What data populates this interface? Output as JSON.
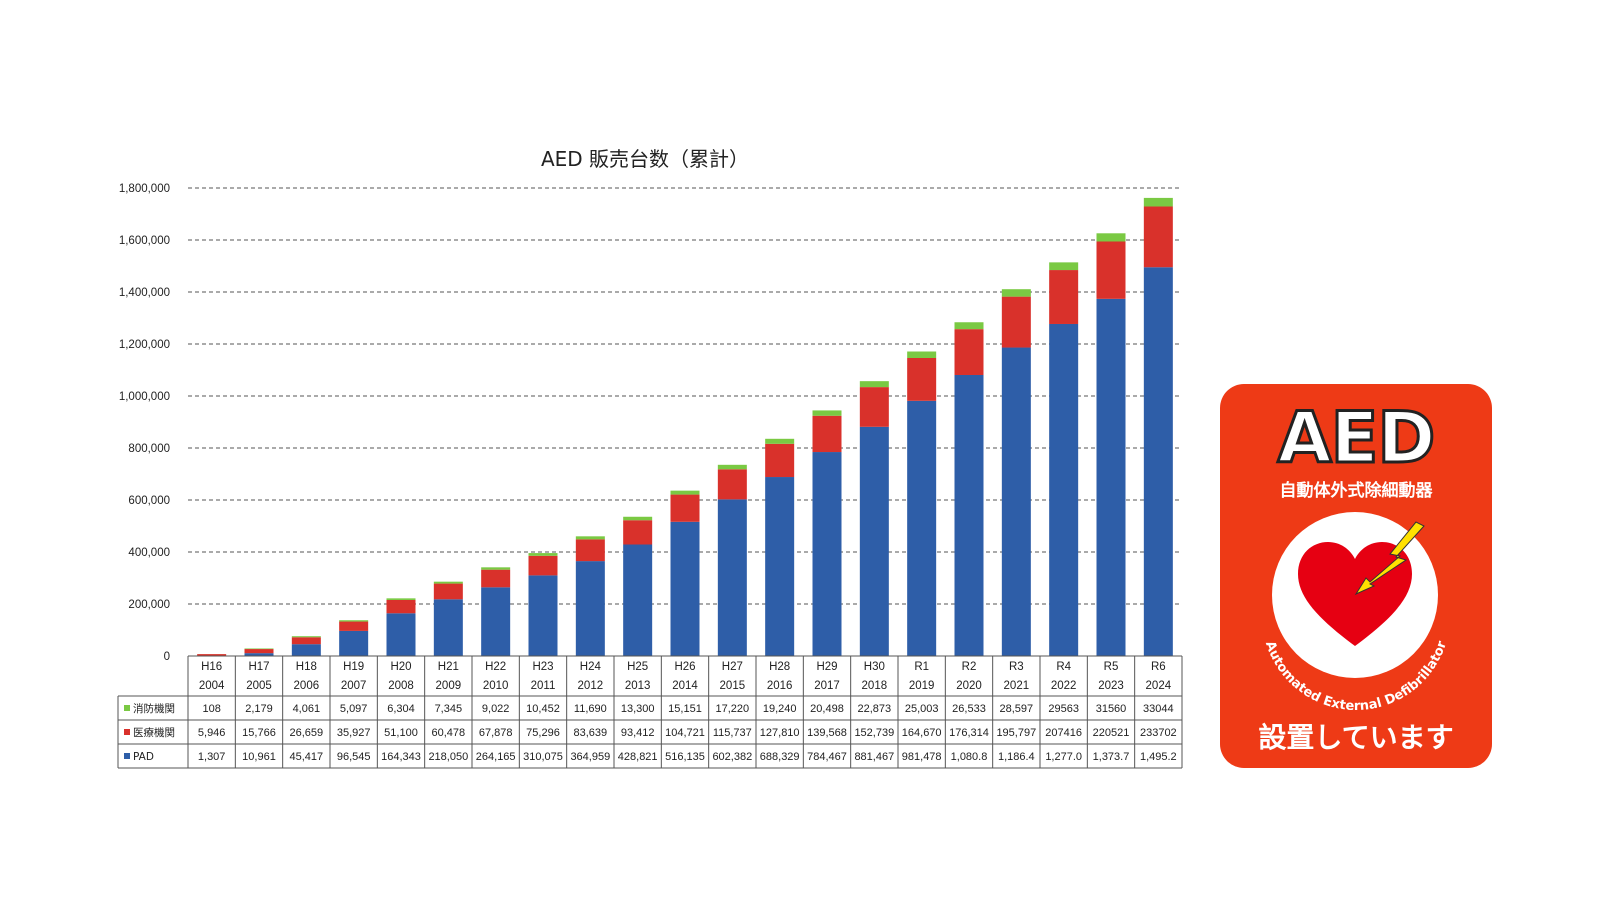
{
  "chart_data": {
    "type": "bar",
    "stacked": true,
    "title": "AED 販売台数（累計）",
    "ylim": [
      0,
      1800000
    ],
    "yticks": [
      "0",
      "200,000",
      "400,000",
      "600,000",
      "800,000",
      "1,000,000",
      "1,200,000",
      "1,400,000",
      "1,600,000",
      "1,800,000"
    ],
    "grid": "horizontal dashed",
    "categories": [
      [
        "H16",
        "2004"
      ],
      [
        "H17",
        "2005"
      ],
      [
        "H18",
        "2006"
      ],
      [
        "H19",
        "2007"
      ],
      [
        "H20",
        "2008"
      ],
      [
        "H21",
        "2009"
      ],
      [
        "H22",
        "2010"
      ],
      [
        "H23",
        "2011"
      ],
      [
        "H24",
        "2012"
      ],
      [
        "H25",
        "2013"
      ],
      [
        "H26",
        "2014"
      ],
      [
        "H27",
        "2015"
      ],
      [
        "H28",
        "2016"
      ],
      [
        "H29",
        "2017"
      ],
      [
        "H30",
        "2018"
      ],
      [
        "R1",
        "2019"
      ],
      [
        "R2",
        "2020"
      ],
      [
        "R3",
        "2021"
      ],
      [
        "R4",
        "2022"
      ],
      [
        "R5",
        "2023"
      ],
      [
        "R6",
        "2024"
      ]
    ],
    "series": [
      {
        "name": "PAD",
        "color": "#2e5ea8",
        "values": [
          1307,
          10961,
          45417,
          96545,
          164343,
          218050,
          264165,
          310075,
          364959,
          428821,
          516135,
          602382,
          688329,
          784467,
          881467,
          981478,
          1080800,
          1186400,
          1277000,
          1373700,
          1495200
        ],
        "labels": [
          "1,307",
          "10,961",
          "45,417",
          "96,545",
          "164,343",
          "218,050",
          "264,165",
          "310,075",
          "364,959",
          "428,821",
          "516,135",
          "602,382",
          "688,329",
          "784,467",
          "881,467",
          "981,478",
          "1,080.8",
          "1,186.4",
          "1,277.0",
          "1,373.7",
          "1,495.2"
        ]
      },
      {
        "name": "医療機関",
        "color": "#d9312b",
        "values": [
          5946,
          15766,
          26659,
          35927,
          51100,
          60478,
          67878,
          75296,
          83639,
          93412,
          104721,
          115737,
          127810,
          139568,
          152739,
          164670,
          176314,
          195797,
          207416,
          220521,
          233702
        ],
        "labels": [
          "5,946",
          "15,766",
          "26,659",
          "35,927",
          "51,100",
          "60,478",
          "67,878",
          "75,296",
          "83,639",
          "93,412",
          "104,721",
          "115,737",
          "127,810",
          "139,568",
          "152,739",
          "164,670",
          "176,314",
          "195,797",
          "207416",
          "220521",
          "233702"
        ]
      },
      {
        "name": "消防機関",
        "color": "#7ac943",
        "values": [
          108,
          2179,
          4061,
          5097,
          6304,
          7345,
          9022,
          10452,
          11690,
          13300,
          15151,
          17220,
          19240,
          20498,
          22873,
          25003,
          26533,
          28597,
          29563,
          31560,
          33044
        ],
        "labels": [
          "108",
          "2,179",
          "4,061",
          "5,097",
          "6,304",
          "7,345",
          "9,022",
          "10,452",
          "11,690",
          "13,300",
          "15,151",
          "17,220",
          "19,240",
          "20,498",
          "22,873",
          "25,003",
          "26,533",
          "28,597",
          "29563",
          "31560",
          "33044"
        ]
      }
    ],
    "table_row_order": [
      "消防機関",
      "医療機関",
      "PAD"
    ]
  },
  "sign": {
    "big": "AED",
    "jp": "自動体外式除細動器",
    "arc": "Automated External Defibrillator",
    "install": "設置しています",
    "bg": "#ee3a16",
    "heart": "#e60012",
    "bolt": "#ffe100"
  }
}
